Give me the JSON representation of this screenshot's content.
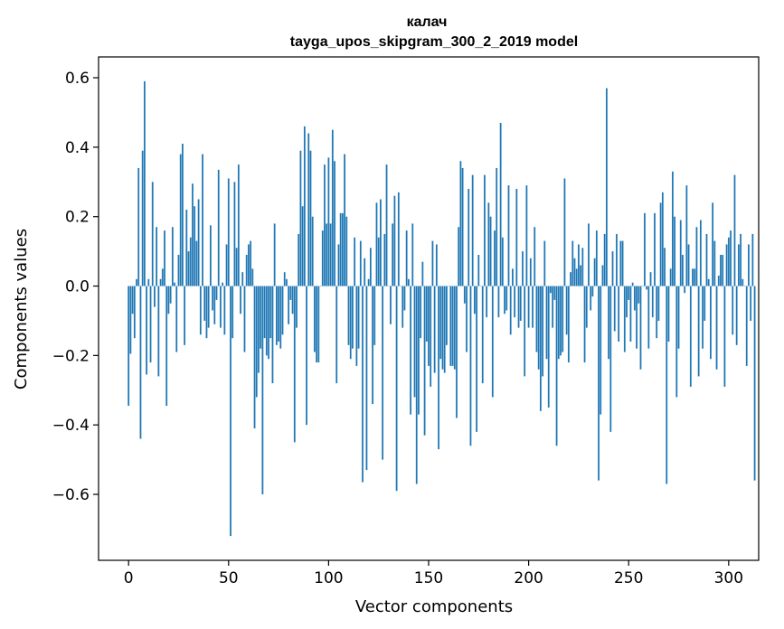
{
  "chart_data": {
    "type": "bar",
    "title": "калач",
    "subtitle": "tayga_upos_skipgram_300_2_2019 model",
    "xlabel": "Vector components",
    "ylabel": "Components values",
    "xlim": [
      -15,
      315
    ],
    "ylim": [
      -0.79,
      0.66
    ],
    "xticks": [
      0,
      50,
      100,
      150,
      200,
      250,
      300
    ],
    "xtick_labels": [
      "0",
      "50",
      "100",
      "150",
      "200",
      "250",
      "300"
    ],
    "yticks": [
      -0.6,
      -0.4,
      -0.2,
      0.0,
      0.2,
      0.4,
      0.6
    ],
    "ytick_labels": [
      "−0.6",
      "−0.4",
      "−0.2",
      "0.0",
      "0.2",
      "0.4",
      "0.6"
    ],
    "bar_color": "#1f77b4",
    "grid": false,
    "values": [
      -0.345,
      -0.195,
      -0.08,
      -0.15,
      0.02,
      0.34,
      -0.44,
      0.39,
      0.59,
      -0.255,
      0.02,
      -0.22,
      0.3,
      -0.06,
      0.17,
      -0.26,
      0.02,
      0.05,
      0.16,
      -0.345,
      -0.08,
      -0.05,
      0.17,
      0.01,
      -0.19,
      0.09,
      0.38,
      0.41,
      -0.17,
      0.22,
      0.1,
      0.14,
      0.295,
      0.23,
      0.13,
      0.25,
      -0.14,
      0.38,
      -0.1,
      -0.15,
      -0.12,
      0.175,
      -0.07,
      -0.11,
      -0.04,
      0.335,
      -0.12,
      0.01,
      -0.14,
      0.12,
      0.31,
      -0.72,
      -0.15,
      0.3,
      0.11,
      0.35,
      -0.08,
      0.04,
      -0.19,
      0.09,
      0.12,
      0.13,
      0.05,
      -0.41,
      -0.32,
      -0.25,
      -0.18,
      -0.6,
      -0.15,
      -0.2,
      -0.21,
      -0.15,
      -0.28,
      0.18,
      -0.17,
      -0.16,
      -0.18,
      -0.14,
      0.04,
      0.02,
      -0.11,
      -0.04,
      -0.08,
      -0.45,
      -0.12,
      0.15,
      0.39,
      0.23,
      0.46,
      -0.4,
      0.44,
      0.39,
      0.2,
      -0.19,
      -0.22,
      -0.22,
      0.0,
      0.16,
      0.35,
      0.18,
      0.37,
      0.18,
      0.45,
      0.36,
      -0.28,
      0.12,
      0.21,
      0.21,
      0.38,
      0.2,
      -0.17,
      -0.21,
      -0.18,
      0.14,
      -0.23,
      -0.18,
      0.13,
      -0.565,
      0.08,
      -0.53,
      0.02,
      0.11,
      -0.34,
      -0.17,
      0.24,
      0.14,
      0.25,
      -0.5,
      0.15,
      0.35,
      0.0,
      -0.11,
      0.18,
      0.26,
      -0.59,
      0.27,
      0.0,
      -0.12,
      -0.07,
      0.16,
      0.02,
      -0.37,
      0.18,
      -0.32,
      -0.57,
      -0.37,
      -0.15,
      0.07,
      -0.43,
      -0.16,
      -0.23,
      -0.29,
      0.13,
      -0.25,
      0.12,
      -0.47,
      -0.21,
      -0.24,
      -0.25,
      -0.17,
      0.0,
      -0.23,
      -0.23,
      -0.24,
      -0.38,
      0.17,
      0.36,
      0.34,
      -0.05,
      -0.19,
      0.28,
      -0.46,
      0.32,
      -0.08,
      -0.42,
      0.09,
      0.0,
      -0.28,
      0.32,
      -0.09,
      0.24,
      0.2,
      -0.32,
      0.16,
      0.34,
      -0.09,
      0.47,
      0.14,
      -0.08,
      -0.07,
      0.29,
      -0.14,
      0.05,
      -0.09,
      0.28,
      -0.12,
      -0.1,
      0.1,
      -0.26,
      0.29,
      -0.12,
      0.08,
      -0.12,
      0.17,
      -0.19,
      -0.24,
      -0.36,
      -0.26,
      0.13,
      -0.21,
      -0.35,
      -0.02,
      -0.12,
      -0.04,
      -0.46,
      -0.21,
      -0.2,
      -0.19,
      0.31,
      -0.14,
      -0.22,
      0.04,
      0.13,
      0.08,
      0.05,
      0.12,
      0.06,
      0.11,
      -0.22,
      -0.12,
      0.18,
      -0.07,
      -0.03,
      0.08,
      0.16,
      -0.56,
      -0.37,
      0.06,
      0.15,
      0.57,
      -0.21,
      -0.42,
      0.1,
      -0.13,
      0.15,
      -0.16,
      0.13,
      0.13,
      -0.19,
      -0.09,
      -0.04,
      -0.16,
      0.01,
      -0.07,
      -0.18,
      -0.05,
      -0.24,
      0.0,
      0.21,
      -0.01,
      -0.18,
      0.04,
      -0.09,
      0.21,
      -0.15,
      -0.1,
      0.24,
      0.27,
      0.11,
      -0.57,
      -0.16,
      0.05,
      0.33,
      0.2,
      -0.32,
      -0.18,
      0.19,
      0.09,
      -0.02,
      0.29,
      0.12,
      -0.29,
      0.05,
      0.05,
      0.17,
      -0.26,
      0.19,
      -0.18,
      -0.1,
      0.15,
      0.02,
      -0.21,
      0.24,
      0.13,
      -0.24,
      0.03,
      0.09,
      0.09,
      -0.29,
      0.12,
      0.14,
      0.16,
      -0.14,
      0.32,
      -0.17,
      0.12,
      0.15,
      0.02,
      0.0,
      -0.23,
      0.12,
      -0.1,
      0.15,
      -0.56
    ]
  }
}
